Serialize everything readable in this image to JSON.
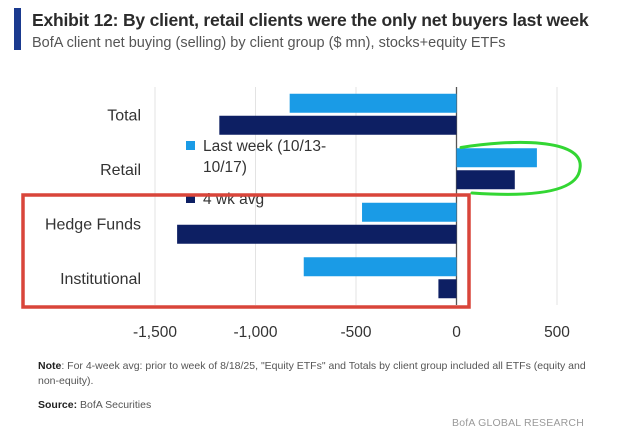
{
  "header": {
    "title": "Exhibit 12: By client, retail clients were the only net buyers last week",
    "subtitle": "BofA client net buying (selling) by client group ($ mn), stocks+equity ETFs"
  },
  "chart_data": {
    "type": "bar",
    "orientation": "horizontal",
    "categories": [
      "Total",
      "Retail",
      "Hedge Funds",
      "Institutional"
    ],
    "series": [
      {
        "name": "Last week (10/13-10/17)",
        "values": [
          -830,
          400,
          -470,
          -760
        ],
        "color": "#1a9be6"
      },
      {
        "name": "4 wk avg",
        "values": [
          -1180,
          290,
          -1390,
          -90
        ],
        "color": "#0d1f63"
      }
    ],
    "legend_lines": [
      [
        "Last week (10/13-",
        "10/17)"
      ],
      [
        "4 wk avg"
      ]
    ],
    "legend_placement": "center",
    "xlim": [
      -1500,
      500
    ],
    "xticks": [
      -1500,
      -1000,
      -500,
      0,
      500
    ],
    "xtick_labels": [
      "-1,500",
      "-1,000",
      "-500",
      "0",
      "500"
    ],
    "grid": "vertical",
    "annotations": [
      {
        "type": "rectangle",
        "color": "#d9453a",
        "encloses": [
          "Hedge Funds",
          "Institutional"
        ]
      },
      {
        "type": "bracket",
        "color": "#33d633",
        "encloses": [
          "Retail"
        ]
      }
    ]
  },
  "notes": {
    "note_label": "Note",
    "note_text": ": For 4-week avg: prior to week of 8/18/25, \"Equity ETFs\" and Totals by client group included all ETFs (equity and non-equity).",
    "source_label": "Source:",
    "source_text": " BofA Securities"
  },
  "footer": {
    "brand": "BofA GLOBAL RESEARCH"
  }
}
